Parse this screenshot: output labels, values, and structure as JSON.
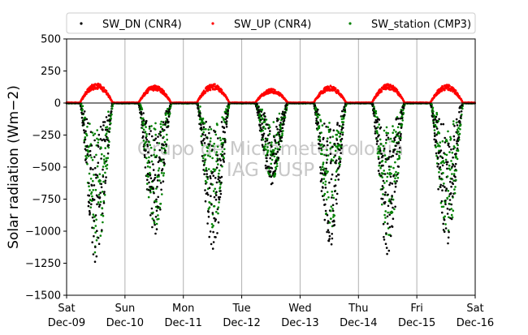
{
  "chart_data": {
    "type": "scatter",
    "title": "",
    "xlabel": "",
    "ylabel": "Solar radiation (Wm−2)",
    "ylim": [
      -1500,
      500
    ],
    "xlim_days": [
      "2017-12-09",
      "2017-12-16"
    ],
    "grid": "vertical",
    "legend_placement": "top",
    "yticks": [
      500,
      250,
      0,
      -250,
      -500,
      -750,
      -1000,
      -1250,
      -1500
    ],
    "ytick_labels": [
      "500",
      "250",
      "0",
      "−250",
      "−500",
      "−750",
      "−1000",
      "−1250",
      "−1500"
    ],
    "xticks": [
      {
        "day": "Sat",
        "date": "Dec-09"
      },
      {
        "day": "Sun",
        "date": "Dec-10"
      },
      {
        "day": "Mon",
        "date": "Dec-11"
      },
      {
        "day": "Tue",
        "date": "Dec-12"
      },
      {
        "day": "Wed",
        "date": "Dec-13"
      },
      {
        "day": "Thu",
        "date": "Dec-14"
      },
      {
        "day": "Fri",
        "date": "Dec-15"
      },
      {
        "day": "Sat",
        "date": "Dec-16"
      }
    ],
    "watermark": [
      "Grupo de Micrometeorologia",
      "IAG - USP"
    ],
    "series": [
      {
        "name": "SW_DN (CNR4)",
        "color": "#000000",
        "daily_peak": [
          -1270,
          -1050,
          -1180,
          -640,
          -1130,
          -1210,
          -1120
        ]
      },
      {
        "name": "SW_UP (CNR4)",
        "color": "#ff0000",
        "daily_peak": [
          155,
          140,
          150,
          110,
          135,
          150,
          145
        ]
      },
      {
        "name": "SW_station (CMP3)",
        "color": "#008000",
        "daily_peak": [
          -1200,
          -1000,
          -1000,
          -600,
          -1000,
          -1100,
          -1100
        ]
      }
    ],
    "daylight_hours": {
      "start": 5.5,
      "end": 19.0
    }
  }
}
